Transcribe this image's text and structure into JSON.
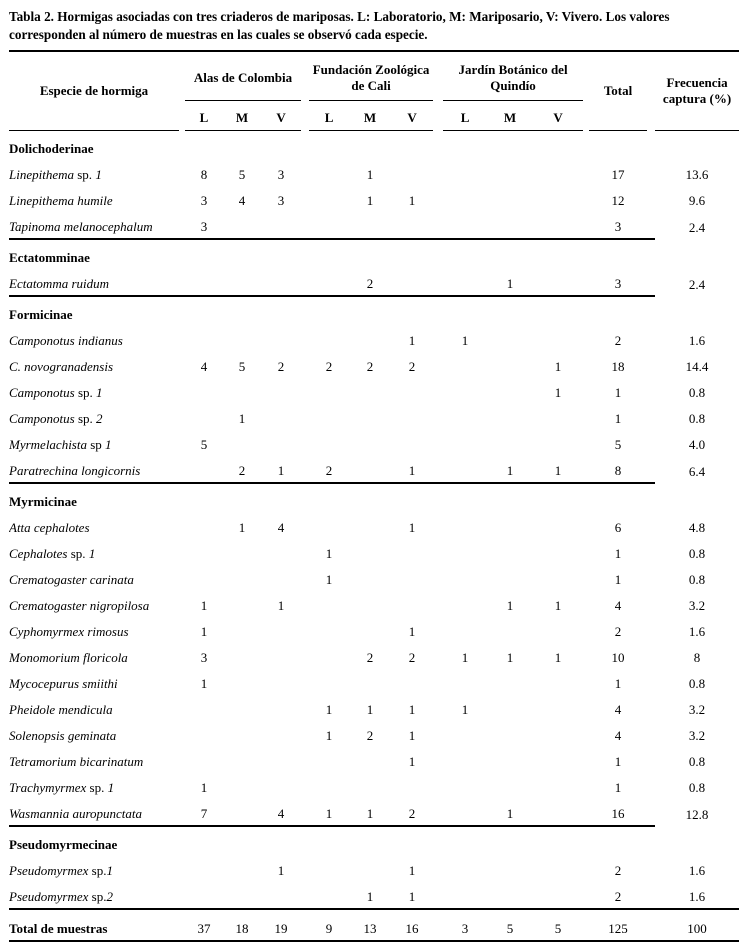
{
  "title": "Tabla 2. Hormigas asociadas con tres criaderos de mariposas. L: Laboratorio, M: Mariposario, V: Vivero. Los valores corresponden al número de muestras en las cuales se observó cada especie.",
  "colors": {
    "text": "#000000",
    "background": "#ffffff",
    "rule": "#000000"
  },
  "table": {
    "species_header": "Especie de hormiga",
    "total_header": "Total",
    "freq_header": "Frecuencia captura (%)",
    "groups": [
      {
        "name": "Alas de Colombia",
        "subcols": [
          "L",
          "M",
          "V"
        ]
      },
      {
        "name": "Fundación Zoológica de Cali",
        "subcols": [
          "L",
          "M",
          "V"
        ]
      },
      {
        "name": "Jardín Botánico del Quindío",
        "subcols": [
          "L",
          "M",
          "V"
        ]
      }
    ],
    "sections": [
      {
        "name": "Dolichoderinae",
        "rows": [
          {
            "name": [
              {
                "t": "Linepithema",
                "it": true
              },
              {
                "t": " sp. ",
                "it": false
              },
              {
                "t": "1",
                "it": true
              }
            ],
            "values": [
              "8",
              "5",
              "3",
              "",
              "1",
              "",
              "",
              "",
              ""
            ],
            "total": "17",
            "freq": "13.6"
          },
          {
            "name": [
              {
                "t": "Linepithema humile",
                "it": true
              }
            ],
            "values": [
              "3",
              "4",
              "3",
              "",
              "1",
              "1",
              "",
              "",
              ""
            ],
            "total": "12",
            "freq": "9.6"
          },
          {
            "name": [
              {
                "t": "Tapinoma melanocephalum",
                "it": true
              }
            ],
            "values": [
              "3",
              "",
              "",
              "",
              "",
              "",
              "",
              "",
              ""
            ],
            "total": "3",
            "freq": "2.4"
          }
        ]
      },
      {
        "name": "Ectatomminae",
        "rows": [
          {
            "name": [
              {
                "t": "Ectatomma ruidum",
                "it": true
              }
            ],
            "values": [
              "",
              "",
              "",
              "",
              "2",
              "",
              "",
              "1",
              ""
            ],
            "total": "3",
            "freq": "2.4"
          }
        ]
      },
      {
        "name": "Formicinae",
        "rows": [
          {
            "name": [
              {
                "t": "Camponotus indianus",
                "it": true
              }
            ],
            "values": [
              "",
              "",
              "",
              "",
              "",
              "1",
              "1",
              "",
              ""
            ],
            "total": "2",
            "freq": "1.6"
          },
          {
            "name": [
              {
                "t": "C. novogranadensis",
                "it": true
              }
            ],
            "values": [
              "4",
              "5",
              "2",
              "2",
              "2",
              "2",
              "",
              "",
              "1"
            ],
            "total": "18",
            "freq": "14.4"
          },
          {
            "name": [
              {
                "t": "Camponotus",
                "it": true
              },
              {
                "t": " sp. ",
                "it": false
              },
              {
                "t": "1",
                "it": true
              }
            ],
            "values": [
              "",
              "",
              "",
              "",
              "",
              "",
              "",
              "",
              "1"
            ],
            "total": "1",
            "freq": "0.8"
          },
          {
            "name": [
              {
                "t": "Camponotus",
                "it": true
              },
              {
                "t": " sp. ",
                "it": false
              },
              {
                "t": "2",
                "it": true
              }
            ],
            "values": [
              "",
              "1",
              "",
              "",
              "",
              "",
              "",
              "",
              ""
            ],
            "total": "1",
            "freq": "0.8"
          },
          {
            "name": [
              {
                "t": "Myrmelachista",
                "it": true
              },
              {
                "t": " sp ",
                "it": false
              },
              {
                "t": "1",
                "it": true
              }
            ],
            "values": [
              "5",
              "",
              "",
              "",
              "",
              "",
              "",
              "",
              ""
            ],
            "total": "5",
            "freq": "4.0"
          },
          {
            "name": [
              {
                "t": "Paratrechina longicornis",
                "it": true
              }
            ],
            "values": [
              "",
              "2",
              "1",
              "2",
              "",
              "1",
              "",
              "1",
              "1"
            ],
            "total": "8",
            "freq": "6.4"
          }
        ]
      },
      {
        "name": "Myrmicinae",
        "rows": [
          {
            "name": [
              {
                "t": "Atta cephalotes",
                "it": true
              }
            ],
            "values": [
              "",
              "1",
              "4",
              "",
              "",
              "1",
              "",
              "",
              ""
            ],
            "total": "6",
            "freq": "4.8"
          },
          {
            "name": [
              {
                "t": "Cephalotes",
                "it": true
              },
              {
                "t": " sp. ",
                "it": false
              },
              {
                "t": "1",
                "it": true
              }
            ],
            "values": [
              "",
              "",
              "",
              "1",
              "",
              "",
              "",
              "",
              ""
            ],
            "total": "1",
            "freq": "0.8"
          },
          {
            "name": [
              {
                "t": "Crematogaster carinata",
                "it": true
              }
            ],
            "values": [
              "",
              "",
              "",
              "1",
              "",
              "",
              "",
              "",
              ""
            ],
            "total": "1",
            "freq": "0.8"
          },
          {
            "name": [
              {
                "t": "Crematogaster nigropilosa",
                "it": true
              }
            ],
            "values": [
              "1",
              "",
              "1",
              "",
              "",
              "",
              "",
              "1",
              "1"
            ],
            "total": "4",
            "freq": "3.2"
          },
          {
            "name": [
              {
                "t": "Cyphomyrmex rimosus",
                "it": true
              }
            ],
            "values": [
              "1",
              "",
              "",
              "",
              "",
              "1",
              "",
              "",
              ""
            ],
            "total": "2",
            "freq": "1.6"
          },
          {
            "name": [
              {
                "t": "Monomorium floricola",
                "it": true
              }
            ],
            "values": [
              "3",
              "",
              "",
              "",
              "2",
              "2",
              "1",
              "1",
              "1"
            ],
            "total": "10",
            "freq": "8"
          },
          {
            "name": [
              {
                "t": "Mycocepurus smiithi",
                "it": true
              }
            ],
            "values": [
              "1",
              "",
              "",
              "",
              "",
              "",
              "",
              "",
              ""
            ],
            "total": "1",
            "freq": "0.8"
          },
          {
            "name": [
              {
                "t": "Pheidole mendicula",
                "it": true
              }
            ],
            "values": [
              "",
              "",
              "",
              "1",
              "1",
              "1",
              "1",
              "",
              ""
            ],
            "total": "4",
            "freq": "3.2"
          },
          {
            "name": [
              {
                "t": "Solenopsis geminata",
                "it": true
              }
            ],
            "values": [
              "",
              "",
              "",
              "1",
              "2",
              "1",
              "",
              "",
              ""
            ],
            "total": "4",
            "freq": "3.2"
          },
          {
            "name": [
              {
                "t": "Tetramorium bicarinatum",
                "it": true
              }
            ],
            "values": [
              "",
              "",
              "",
              "",
              "",
              "1",
              "",
              "",
              ""
            ],
            "total": "1",
            "freq": "0.8"
          },
          {
            "name": [
              {
                "t": "Trachymyrmex",
                "it": true
              },
              {
                "t": " sp. ",
                "it": false
              },
              {
                "t": "1",
                "it": true
              }
            ],
            "values": [
              "1",
              "",
              "",
              "",
              "",
              "",
              "",
              "",
              ""
            ],
            "total": "1",
            "freq": "0.8"
          },
          {
            "name": [
              {
                "t": "Wasmannia auropunctata",
                "it": true
              }
            ],
            "values": [
              "7",
              "",
              "4",
              "1",
              "1",
              "2",
              "",
              "1",
              ""
            ],
            "total": "16",
            "freq": "12.8"
          }
        ]
      },
      {
        "name": "Pseudomyrmecinae",
        "rows": [
          {
            "name": [
              {
                "t": "Pseudomyrmex",
                "it": true
              },
              {
                "t": " sp.",
                "it": false
              },
              {
                "t": "1",
                "it": true
              }
            ],
            "values": [
              "",
              "",
              "1",
              "",
              "",
              "1",
              "",
              "",
              ""
            ],
            "total": "2",
            "freq": "1.6"
          },
          {
            "name": [
              {
                "t": "Pseudomyrmex",
                "it": true
              },
              {
                "t": " sp.",
                "it": false
              },
              {
                "t": "2",
                "it": true
              }
            ],
            "values": [
              "",
              "",
              "",
              "",
              "1",
              "1",
              "",
              "",
              ""
            ],
            "total": "2",
            "freq": "1.6"
          }
        ]
      }
    ],
    "footer": {
      "label": "Total de muestras",
      "values": [
        "37",
        "18",
        "19",
        "9",
        "13",
        "16",
        "3",
        "5",
        "5"
      ],
      "total": "125",
      "freq": "100"
    }
  }
}
